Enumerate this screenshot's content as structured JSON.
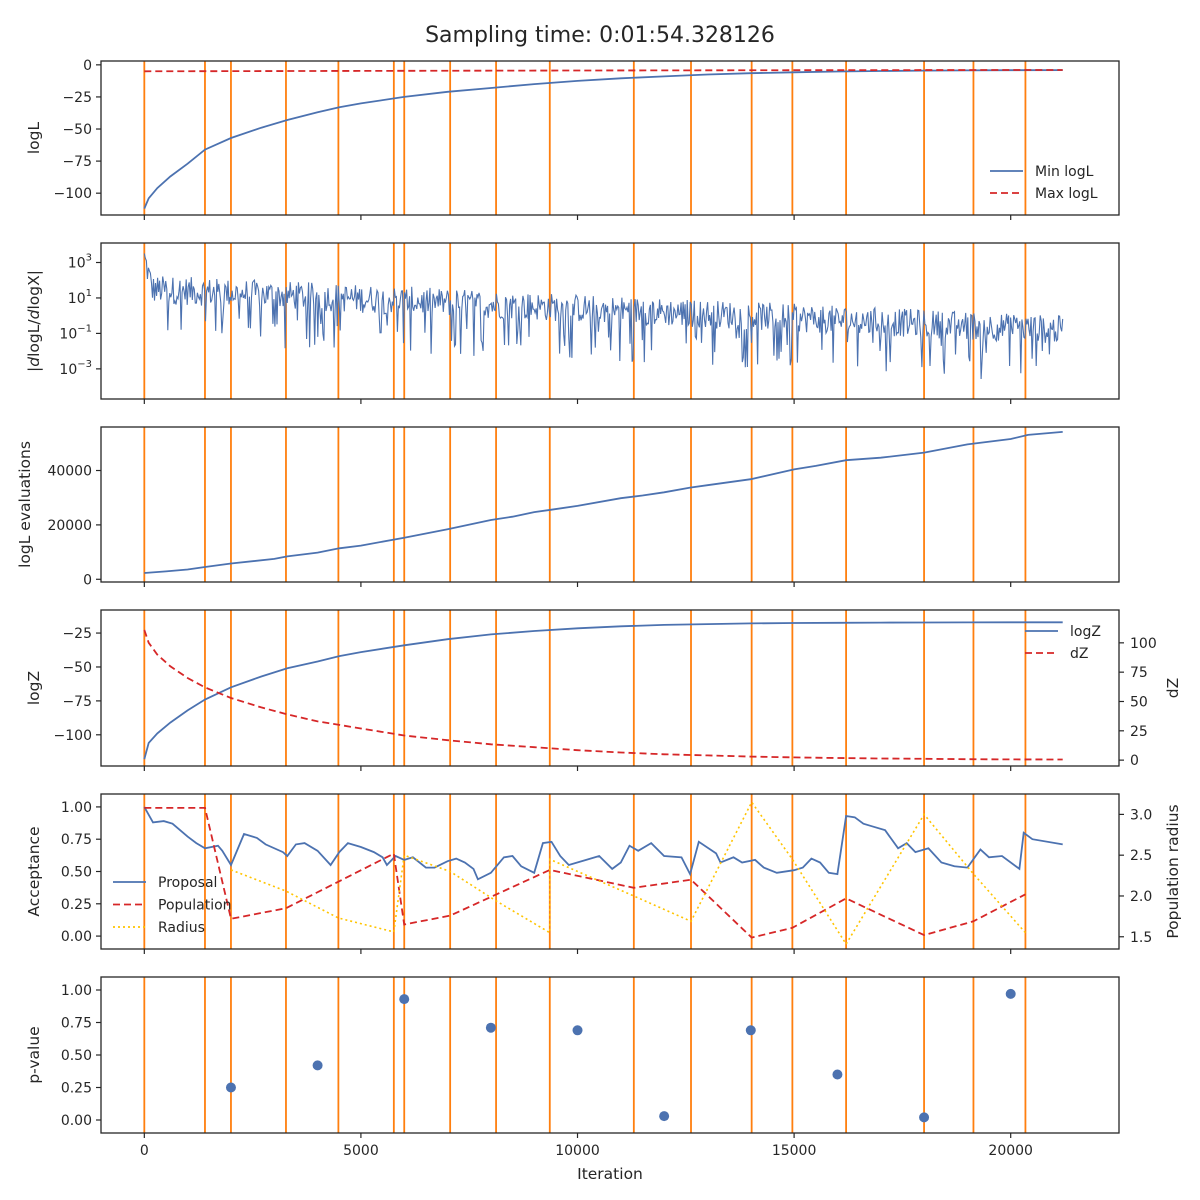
{
  "figure": {
    "title": "Sampling time: 0:01:54.328126",
    "xlabel": "Iteration"
  },
  "colors": {
    "blue": "#4c72b0",
    "red": "#d62728",
    "orange": "#ff7f0e",
    "yellow": "#ffc400",
    "axis": "#262626"
  },
  "chart_data": [
    {
      "type": "line",
      "name": "logL panel",
      "ylabel": "logL",
      "xlim": [
        -1000,
        22500
      ],
      "ylim": [
        -117,
        3
      ],
      "yticks": [
        0,
        -25,
        -50,
        -75,
        -100
      ],
      "ytick_labels": [
        "0",
        "−25",
        "−50",
        "−75",
        "−100"
      ],
      "legend": "lower-right",
      "series": [
        {
          "name": "Min logL",
          "style": "solid",
          "color": "blue",
          "x": [
            0,
            100,
            300,
            600,
            1000,
            1400,
            2000,
            2700,
            3300,
            4000,
            4500,
            5000,
            6000,
            7000,
            8000,
            9000,
            10000,
            11000,
            12000,
            13000,
            14000,
            15000,
            16000,
            17000,
            18000,
            19000,
            20000,
            21200
          ],
          "y": [
            -112,
            -104,
            -96,
            -87,
            -77,
            -66,
            -57,
            -49,
            -43,
            -37,
            -33,
            -30,
            -25,
            -21,
            -18,
            -15,
            -12.5,
            -10.5,
            -9,
            -7.5,
            -6.5,
            -5.8,
            -5.2,
            -4.8,
            -4.5,
            -4.3,
            -4.2,
            -4.1
          ]
        },
        {
          "name": "Max logL",
          "style": "dashed",
          "color": "red",
          "x": [
            0,
            5000,
            10000,
            15000,
            20000,
            21200
          ],
          "y": [
            -5,
            -4.7,
            -4.4,
            -4.2,
            -4.0,
            -4.0
          ]
        }
      ],
      "vlines": [
        0,
        1400,
        2000,
        3270,
        4480,
        5760,
        6000,
        7060,
        8120,
        9360,
        11300,
        12620,
        14020,
        14960,
        16200,
        18000,
        19140,
        20340
      ]
    },
    {
      "type": "line",
      "name": "gradient panel",
      "ylabel": "|dlogL/dlogX|",
      "scale": "log",
      "xlim": [
        -1000,
        22500
      ],
      "ylim_exp": [
        -4.7,
        4.1
      ],
      "yticks_exp": [
        3,
        1,
        -1,
        -3
      ],
      "yticks": [
        1000,
        10,
        0.1,
        0.001
      ],
      "series": [
        {
          "name": "",
          "style": "solid",
          "color": "blue",
          "trend_x": [
            0,
            21200
          ],
          "trend_log10_y": [
            1.5,
            -0.8
          ]
        }
      ],
      "vlines": [
        0,
        1400,
        2000,
        3270,
        4480,
        5760,
        6000,
        7060,
        8120,
        9360,
        11300,
        12620,
        14020,
        14960,
        16200,
        18000,
        19140,
        20340
      ]
    },
    {
      "type": "line",
      "name": "evaluations panel",
      "ylabel": "logL evaluations",
      "xlim": [
        -1000,
        22500
      ],
      "ylim": [
        -1000,
        56000
      ],
      "yticks": [
        0,
        20000,
        40000
      ],
      "ytick_labels": [
        "0",
        "20000",
        "40000"
      ],
      "series": [
        {
          "name": "",
          "style": "solid",
          "color": "blue",
          "x": [
            0,
            500,
            1000,
            1400,
            2000,
            3000,
            3300,
            4000,
            4500,
            5000,
            6000,
            7000,
            8000,
            8500,
            9000,
            9400,
            10000,
            11000,
            11500,
            12000,
            12600,
            13000,
            14000,
            15000,
            15500,
            16200,
            17000,
            18000,
            19000,
            20000,
            20400,
            21200
          ],
          "y": [
            2300,
            2900,
            3600,
            4500,
            5800,
            7500,
            8400,
            9800,
            11400,
            12400,
            15300,
            18400,
            21800,
            23000,
            24700,
            25600,
            27000,
            29800,
            30800,
            32000,
            33700,
            34600,
            36800,
            40400,
            41700,
            43800,
            44700,
            46600,
            49600,
            51600,
            53100,
            54200
          ]
        }
      ],
      "vlines": [
        0,
        1400,
        2000,
        3270,
        4480,
        5760,
        6000,
        7060,
        8120,
        9360,
        11300,
        12620,
        14020,
        14960,
        16200,
        18000,
        19140,
        20340
      ]
    },
    {
      "type": "line",
      "name": "evidence panel",
      "ylabel": "logZ",
      "ylabel_right": "dZ",
      "xlim": [
        -1000,
        22500
      ],
      "ylim": [
        -123,
        -8
      ],
      "yticks": [
        -25,
        -50,
        -75,
        -100
      ],
      "ytick_labels": [
        "−25",
        "−50",
        "−75",
        "−100"
      ],
      "ylim_right": [
        -5,
        128
      ],
      "yticks_right": [
        0,
        25,
        50,
        75,
        100
      ],
      "legend": "upper-right",
      "series": [
        {
          "name": "logZ",
          "style": "solid",
          "color": "blue",
          "axis": "left",
          "x": [
            0,
            100,
            300,
            600,
            1000,
            1400,
            2000,
            2700,
            3300,
            4000,
            4500,
            5000,
            6000,
            7000,
            8000,
            9000,
            10000,
            11000,
            12000,
            13000,
            14000,
            15000,
            16000,
            17000,
            18000,
            19000,
            20000,
            21200
          ],
          "y": [
            -118,
            -106,
            -99,
            -91,
            -82,
            -74,
            -65,
            -57,
            -51,
            -46,
            -42,
            -39,
            -34,
            -29.5,
            -26,
            -23.5,
            -21.5,
            -20,
            -19,
            -18.4,
            -17.9,
            -17.6,
            -17.4,
            -17.3,
            -17.2,
            -17.15,
            -17.1,
            -17.1
          ]
        },
        {
          "name": "dZ",
          "style": "dashed",
          "color": "red",
          "axis": "right",
          "x": [
            0,
            100,
            300,
            600,
            1000,
            1400,
            2000,
            2700,
            3300,
            4000,
            4500,
            5000,
            6000,
            7000,
            8000,
            9000,
            10000,
            11000,
            12000,
            13000,
            14000,
            15000,
            16000,
            17000,
            18000,
            19000,
            20000,
            21200
          ],
          "y": [
            111,
            100,
            90,
            80,
            70,
            62,
            53,
            45,
            39,
            33,
            30,
            27,
            21,
            17,
            13.5,
            11,
            8.5,
            6.5,
            5,
            4,
            3,
            2.3,
            1.8,
            1.4,
            1.1,
            0.8,
            0.6,
            0.5
          ]
        }
      ],
      "vlines": [
        0,
        1400,
        2000,
        3270,
        4480,
        5760,
        6000,
        7060,
        8120,
        9360,
        11300,
        12620,
        14020,
        14960,
        16200,
        18000,
        19140,
        20340
      ]
    },
    {
      "type": "line",
      "name": "acceptance panel",
      "ylabel": "Acceptance",
      "ylabel_right": "Population radius",
      "xlim": [
        -1000,
        22500
      ],
      "ylim": [
        -0.1,
        1.1
      ],
      "yticks": [
        0,
        0.25,
        0.5,
        0.75,
        1.0
      ],
      "ytick_labels": [
        "0.00",
        "0.25",
        "0.50",
        "0.75",
        "1.00"
      ],
      "ylim_right": [
        1.35,
        3.25
      ],
      "yticks_right": [
        1.5,
        2.0,
        2.5,
        3.0
      ],
      "ytick_labels_right": [
        "1.5",
        "2.0",
        "2.5",
        "3.0"
      ],
      "legend": "lower-left",
      "series": [
        {
          "name": "Proposal",
          "style": "solid",
          "color": "blue",
          "axis": "left",
          "x": [
            0,
            200,
            450,
            650,
            1000,
            1200,
            1200,
            1400,
            1700,
            1800,
            2000,
            2300,
            2600,
            2800,
            3200,
            3300,
            3500,
            3700,
            4000,
            4300,
            4500,
            4700,
            5000,
            5300,
            5500,
            5600,
            5800,
            6000,
            6200,
            6500,
            6700,
            7000,
            7200,
            7400,
            7600,
            7700,
            8000,
            8300,
            8500,
            8700,
            9000,
            9200,
            9400,
            9600,
            9800,
            10200,
            10500,
            10800,
            11000,
            11200,
            11400,
            11700,
            12000,
            12400,
            12600,
            12800,
            13200,
            13300,
            13600,
            13800,
            14100,
            14300,
            14600,
            15000,
            15200,
            15400,
            15600,
            15800,
            16000,
            16200,
            16400,
            16600,
            16800,
            17100,
            17400,
            17600,
            17800,
            18100,
            18400,
            18700,
            19000,
            19300,
            19500,
            19800,
            20200,
            20300,
            20500,
            21200
          ],
          "y": [
            1.0,
            0.88,
            0.89,
            0.87,
            0.77,
            0.72,
            0.72,
            0.68,
            0.7,
            0.66,
            0.55,
            0.79,
            0.76,
            0.71,
            0.65,
            0.62,
            0.71,
            0.72,
            0.66,
            0.55,
            0.65,
            0.72,
            0.69,
            0.65,
            0.61,
            0.55,
            0.62,
            0.59,
            0.61,
            0.53,
            0.53,
            0.58,
            0.6,
            0.57,
            0.52,
            0.44,
            0.49,
            0.61,
            0.62,
            0.54,
            0.49,
            0.72,
            0.73,
            0.62,
            0.55,
            0.59,
            0.62,
            0.52,
            0.57,
            0.7,
            0.66,
            0.72,
            0.62,
            0.61,
            0.48,
            0.73,
            0.64,
            0.57,
            0.61,
            0.57,
            0.59,
            0.53,
            0.49,
            0.51,
            0.53,
            0.6,
            0.57,
            0.49,
            0.48,
            0.93,
            0.92,
            0.87,
            0.85,
            0.82,
            0.68,
            0.72,
            0.65,
            0.68,
            0.57,
            0.54,
            0.53,
            0.67,
            0.61,
            0.62,
            0.52,
            0.8,
            0.75,
            0.71
          ]
        },
        {
          "name": "Population",
          "style": "dashed",
          "color": "red",
          "axis": "right",
          "x": [
            0,
            1400,
            2000,
            3270,
            5760,
            6000,
            7060,
            9360,
            9360,
            11300,
            12620,
            14020,
            14960,
            16200,
            18000,
            19140,
            20340
          ],
          "y": [
            3.08,
            3.08,
            1.72,
            1.85,
            2.52,
            1.65,
            1.76,
            2.32,
            2.32,
            2.1,
            2.2,
            1.49,
            1.61,
            1.97,
            1.52,
            1.69,
            2.02
          ]
        },
        {
          "name": "Radius",
          "style": "dotted",
          "color": "yellow",
          "axis": "right",
          "x": [
            2000,
            3270,
            4480,
            5760,
            6000,
            7060,
            8120,
            9360,
            9360,
            11300,
            12620,
            14020,
            14960,
            16200,
            18000,
            19140,
            20340
          ],
          "y": [
            2.32,
            2.06,
            1.73,
            1.56,
            2.5,
            2.3,
            1.94,
            1.55,
            2.45,
            2.0,
            1.69,
            3.15,
            2.45,
            1.41,
            3.0,
            2.27,
            1.55
          ]
        }
      ],
      "vlines": [
        0,
        1400,
        2000,
        3270,
        4480,
        5760,
        6000,
        7060,
        8120,
        9360,
        11300,
        12620,
        14020,
        14960,
        16200,
        18000,
        19140,
        20340
      ]
    },
    {
      "type": "scatter",
      "name": "p-value panel",
      "ylabel": "p-value",
      "xlabel": "Iteration",
      "xlim": [
        -1000,
        22500
      ],
      "xticks": [
        0,
        5000,
        10000,
        15000,
        20000
      ],
      "xtick_labels": [
        "0",
        "5000",
        "10000",
        "15000",
        "20000"
      ],
      "ylim": [
        -0.1,
        1.1
      ],
      "yticks": [
        0,
        0.25,
        0.5,
        0.75,
        1.0
      ],
      "ytick_labels": [
        "0.00",
        "0.25",
        "0.50",
        "0.75",
        "1.00"
      ],
      "series": [
        {
          "name": "",
          "color": "blue",
          "x": [
            2000,
            4000,
            6000,
            8000,
            10000,
            12000,
            14000,
            16000,
            18000,
            20000
          ],
          "y": [
            0.25,
            0.42,
            0.93,
            0.71,
            0.69,
            0.03,
            0.69,
            0.35,
            0.02,
            0.97
          ]
        }
      ],
      "vlines": [
        0,
        1400,
        2000,
        3270,
        4480,
        5760,
        6000,
        7060,
        8120,
        9360,
        11300,
        12620,
        14020,
        14960,
        16200,
        18000,
        19140,
        20340
      ]
    }
  ]
}
